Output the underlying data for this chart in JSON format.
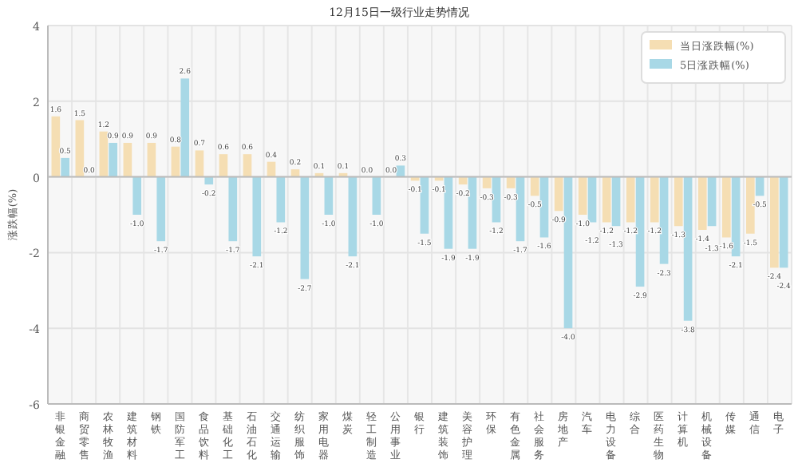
{
  "chart_data": {
    "type": "bar",
    "title": "12月15日一级行业走势情况",
    "ylabel": "涨跌幅(%)",
    "categories": [
      "非银金融",
      "商贸零售",
      "农林牧渔",
      "建筑材料",
      "钢铁",
      "国防军工",
      "食品饮料",
      "基础化工",
      "石油石化",
      "交通运输",
      "纺织服饰",
      "家用电器",
      "煤炭",
      "轻工制造",
      "公用事业",
      "银行",
      "建筑装饰",
      "美容护理",
      "环保",
      "有色金属",
      "社会服务",
      "房地产",
      "汽车",
      "电力设备",
      "综合",
      "医药生物",
      "计算机",
      "机械设备",
      "传媒",
      "通信",
      "电子"
    ],
    "series": [
      {
        "name": "当日涨跌幅(%)",
        "color": "#f5deb3",
        "values": [
          1.6,
          1.5,
          1.2,
          0.9,
          0.9,
          0.8,
          0.7,
          0.6,
          0.6,
          0.4,
          0.2,
          0.1,
          0.1,
          0.0,
          0.0,
          -0.1,
          -0.1,
          -0.2,
          -0.3,
          -0.3,
          -0.5,
          -0.9,
          -1.0,
          -1.2,
          -1.2,
          -1.2,
          -1.3,
          -1.4,
          -1.6,
          -1.5,
          -2.4
        ],
        "value_labels": [
          "1.6",
          "1.5",
          "1.2",
          "0.9",
          "0.9",
          "0.8",
          "0.7",
          "0.6",
          "0.6",
          "0.4",
          "0.2",
          "0.1",
          "0.1",
          "0.0",
          "0.0",
          "-0.1",
          "-0.1",
          "-0.2",
          "-0.3",
          "-0.3",
          "-0.5",
          "-0.9",
          "-1.0",
          "-1.2",
          "-1.2",
          "-1.2",
          "-1.3",
          "-1.4",
          "-1.6",
          "-1.5",
          "-2.4"
        ]
      },
      {
        "name": "5日涨跌幅(%)",
        "color": "#a8d8e6",
        "values": [
          0.5,
          0.0,
          0.9,
          -1.0,
          -1.7,
          2.6,
          -0.2,
          -1.7,
          -2.1,
          -1.2,
          -2.7,
          -1.0,
          -2.1,
          -1.0,
          0.3,
          -1.5,
          -1.9,
          -1.9,
          -1.2,
          -1.7,
          -1.6,
          -4.0,
          -1.2,
          -1.3,
          -2.9,
          -2.3,
          -3.8,
          -1.3,
          -2.1,
          -0.5,
          -2.4
        ],
        "value_labels": [
          "0.5",
          "0.0",
          "0.9",
          "-1.0",
          "-1.7",
          "2.6",
          "-0.2",
          "-1.7",
          "-2.1",
          "-1.2",
          "-2.7",
          "-1.0",
          "-2.1",
          "-1.0",
          "0.3",
          "-1.5",
          "-1.9",
          "-1.9",
          "-1.2",
          "-1.7",
          "-1.6",
          "-4.0",
          "-1.2",
          "-1.3",
          "-2.9",
          "-2.3",
          "-3.8",
          "-1.3",
          "-2.1",
          "-0.5",
          "-2.4"
        ]
      }
    ],
    "ylim": [
      -6,
      4
    ],
    "yticks": [
      -6,
      -4,
      -2,
      0,
      2,
      4
    ],
    "grid": true,
    "legend": "top right"
  }
}
